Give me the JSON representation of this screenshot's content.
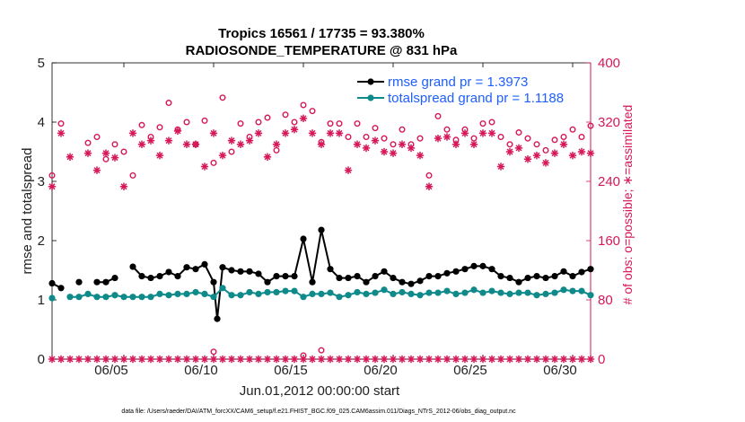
{
  "chart_data": {
    "type": "line",
    "title": "Tropics 16561 / 17735 = 93.380%",
    "subtitle": "RADIOSONDE_TEMPERATURE @ 831 hPa",
    "xlabel": "Jun.01,2012 00:00:00 start",
    "ylabel_left": "rmse and totalspread",
    "ylabel_right": "# of obs: o=possible; ∗=assimilated",
    "footer": "data file: /Users/raeder/DAI/ATM_forcXX/CAM6_setup/f.e21.FHIST_BGC.f09_025.CAM6assim.011/Diags_NTrS_2012-06/obs_diag_output.nc",
    "xlim": [
      1,
      31
    ],
    "x_ticks": [
      5,
      10,
      15,
      20,
      25,
      30
    ],
    "x_tick_labels": [
      "06/05",
      "06/10",
      "06/15",
      "06/20",
      "06/25",
      "06/30"
    ],
    "ylim_left": [
      0,
      5
    ],
    "y_ticks_left": [
      "0",
      "1",
      "2",
      "3",
      "4",
      "5"
    ],
    "ylim_right": [
      0,
      400
    ],
    "y_ticks_right": [
      "0",
      "80",
      "160",
      "240",
      "320",
      "400"
    ],
    "colors": {
      "rmse": "#000000",
      "spread": "#0f8a8a",
      "obs": "#d6175a",
      "legend_text": "#1f5fff"
    },
    "legend": [
      {
        "label": "rmse grand pr = 1.3973",
        "series": "rmse"
      },
      {
        "label": "totalspread grand pr = 1.1188",
        "series": "spread"
      }
    ],
    "series": [
      {
        "name": "rmse",
        "axis": "left",
        "points": [
          [
            1.0,
            1.28
          ],
          [
            1.5,
            1.2
          ],
          [
            2.5,
            1.3
          ],
          [
            3.5,
            1.3
          ],
          [
            4.0,
            1.3
          ],
          [
            4.5,
            1.37
          ],
          [
            5.5,
            1.56
          ],
          [
            6.0,
            1.4
          ],
          [
            6.5,
            1.37
          ],
          [
            7.0,
            1.4
          ],
          [
            7.5,
            1.47
          ],
          [
            8.0,
            1.4
          ],
          [
            8.5,
            1.55
          ],
          [
            9.0,
            1.52
          ],
          [
            9.5,
            1.6
          ],
          [
            10.0,
            1.3
          ],
          [
            10.2,
            0.68
          ],
          [
            10.5,
            1.55
          ],
          [
            11.0,
            1.5
          ],
          [
            11.5,
            1.48
          ],
          [
            12.0,
            1.48
          ],
          [
            12.5,
            1.44
          ],
          [
            13.0,
            1.3
          ],
          [
            13.5,
            1.4
          ],
          [
            14.0,
            1.4
          ],
          [
            14.5,
            1.4
          ],
          [
            15.0,
            2.03
          ],
          [
            15.5,
            1.3
          ],
          [
            16.0,
            2.18
          ],
          [
            16.5,
            1.52
          ],
          [
            17.0,
            1.37
          ],
          [
            17.5,
            1.37
          ],
          [
            18.0,
            1.4
          ],
          [
            18.5,
            1.3
          ],
          [
            19.0,
            1.4
          ],
          [
            19.5,
            1.48
          ],
          [
            20.0,
            1.37
          ],
          [
            20.5,
            1.3
          ],
          [
            21.0,
            1.27
          ],
          [
            21.5,
            1.32
          ],
          [
            22.0,
            1.4
          ],
          [
            22.5,
            1.4
          ],
          [
            23.0,
            1.45
          ],
          [
            23.5,
            1.48
          ],
          [
            24.0,
            1.52
          ],
          [
            24.5,
            1.57
          ],
          [
            25.0,
            1.57
          ],
          [
            25.5,
            1.52
          ],
          [
            26.0,
            1.4
          ],
          [
            26.5,
            1.37
          ],
          [
            27.0,
            1.3
          ],
          [
            27.5,
            1.37
          ],
          [
            28.0,
            1.4
          ],
          [
            28.5,
            1.37
          ],
          [
            29.0,
            1.4
          ],
          [
            29.5,
            1.48
          ],
          [
            30.0,
            1.4
          ],
          [
            30.5,
            1.47
          ],
          [
            31.0,
            1.52
          ]
        ]
      },
      {
        "name": "totalspread",
        "axis": "left",
        "points": [
          [
            1.0,
            1.03
          ],
          [
            2.0,
            1.05
          ],
          [
            2.5,
            1.05
          ],
          [
            3.0,
            1.1
          ],
          [
            3.5,
            1.05
          ],
          [
            4.0,
            1.05
          ],
          [
            4.5,
            1.08
          ],
          [
            5.0,
            1.05
          ],
          [
            5.5,
            1.05
          ],
          [
            6.0,
            1.05
          ],
          [
            6.5,
            1.05
          ],
          [
            7.0,
            1.1
          ],
          [
            7.5,
            1.08
          ],
          [
            8.0,
            1.1
          ],
          [
            8.5,
            1.1
          ],
          [
            9.0,
            1.13
          ],
          [
            9.5,
            1.1
          ],
          [
            10.0,
            1.05
          ],
          [
            10.5,
            1.2
          ],
          [
            11.0,
            1.08
          ],
          [
            11.5,
            1.08
          ],
          [
            12.0,
            1.13
          ],
          [
            12.5,
            1.1
          ],
          [
            13.0,
            1.13
          ],
          [
            13.5,
            1.13
          ],
          [
            14.0,
            1.15
          ],
          [
            14.5,
            1.15
          ],
          [
            15.0,
            1.05
          ],
          [
            15.5,
            1.1
          ],
          [
            16.0,
            1.1
          ],
          [
            16.5,
            1.12
          ],
          [
            17.0,
            1.05
          ],
          [
            17.5,
            1.08
          ],
          [
            18.0,
            1.13
          ],
          [
            18.5,
            1.1
          ],
          [
            19.0,
            1.12
          ],
          [
            19.5,
            1.17
          ],
          [
            20.0,
            1.1
          ],
          [
            20.5,
            1.13
          ],
          [
            21.0,
            1.1
          ],
          [
            21.5,
            1.08
          ],
          [
            22.0,
            1.12
          ],
          [
            22.5,
            1.12
          ],
          [
            23.0,
            1.15
          ],
          [
            23.5,
            1.1
          ],
          [
            24.0,
            1.12
          ],
          [
            24.5,
            1.17
          ],
          [
            25.0,
            1.12
          ],
          [
            25.5,
            1.15
          ],
          [
            26.0,
            1.12
          ],
          [
            26.5,
            1.1
          ],
          [
            27.0,
            1.12
          ],
          [
            27.5,
            1.12
          ],
          [
            28.0,
            1.08
          ],
          [
            28.5,
            1.1
          ],
          [
            29.0,
            1.12
          ],
          [
            29.5,
            1.17
          ],
          [
            30.0,
            1.15
          ],
          [
            30.5,
            1.15
          ],
          [
            31.0,
            1.08
          ]
        ]
      },
      {
        "name": "obs possible",
        "axis": "right",
        "marker": "circle",
        "points": [
          [
            1.0,
            248
          ],
          [
            1.5,
            318
          ],
          [
            3.0,
            292
          ],
          [
            3.5,
            300
          ],
          [
            4.0,
            270
          ],
          [
            4.5,
            290
          ],
          [
            5.0,
            280
          ],
          [
            5.5,
            248
          ],
          [
            6.0,
            316
          ],
          [
            6.5,
            300
          ],
          [
            7.0,
            313
          ],
          [
            7.5,
            346
          ],
          [
            8.0,
            310
          ],
          [
            8.5,
            320
          ],
          [
            9.0,
            290
          ],
          [
            9.5,
            322
          ],
          [
            10.0,
            265
          ],
          [
            10.5,
            353
          ],
          [
            11.0,
            280
          ],
          [
            11.5,
            318
          ],
          [
            12.0,
            300
          ],
          [
            12.5,
            320
          ],
          [
            13.0,
            326
          ],
          [
            13.5,
            282
          ],
          [
            14.0,
            330
          ],
          [
            14.5,
            320
          ],
          [
            15.0,
            343
          ],
          [
            15.5,
            335
          ],
          [
            16.0,
            293
          ],
          [
            16.5,
            318
          ],
          [
            17.0,
            318
          ],
          [
            17.5,
            300
          ],
          [
            18.0,
            318
          ],
          [
            18.5,
            300
          ],
          [
            19.0,
            312
          ],
          [
            19.5,
            298
          ],
          [
            20.0,
            290
          ],
          [
            20.5,
            310
          ],
          [
            21.0,
            290
          ],
          [
            21.5,
            298
          ],
          [
            22.0,
            248
          ],
          [
            22.5,
            328
          ],
          [
            23.0,
            310
          ],
          [
            23.5,
            296
          ],
          [
            24.0,
            310
          ],
          [
            24.5,
            298
          ],
          [
            25.0,
            318
          ],
          [
            25.5,
            320
          ],
          [
            26.0,
            300
          ],
          [
            26.5,
            290
          ],
          [
            27.0,
            306
          ],
          [
            27.5,
            298
          ],
          [
            28.0,
            290
          ],
          [
            28.5,
            282
          ],
          [
            29.0,
            296
          ],
          [
            29.5,
            300
          ],
          [
            30.0,
            310
          ],
          [
            30.5,
            300
          ],
          [
            31.0,
            315
          ]
        ]
      },
      {
        "name": "obs assimilated",
        "axis": "right",
        "marker": "asterisk",
        "points": [
          [
            1.0,
            233
          ],
          [
            1.5,
            305
          ],
          [
            2.0,
            273
          ],
          [
            3.0,
            278
          ],
          [
            3.5,
            255
          ],
          [
            4.0,
            278
          ],
          [
            4.5,
            272
          ],
          [
            5.0,
            233
          ],
          [
            5.5,
            305
          ],
          [
            6.0,
            290
          ],
          [
            6.5,
            295
          ],
          [
            7.0,
            275
          ],
          [
            7.5,
            295
          ],
          [
            8.0,
            308
          ],
          [
            8.5,
            290
          ],
          [
            9.0,
            290
          ],
          [
            9.5,
            260
          ],
          [
            10.0,
            305
          ],
          [
            10.5,
            275
          ],
          [
            11.0,
            295
          ],
          [
            11.5,
            290
          ],
          [
            12.0,
            295
          ],
          [
            12.5,
            305
          ],
          [
            13.0,
            273
          ],
          [
            13.5,
            290
          ],
          [
            14.0,
            305
          ],
          [
            14.5,
            310
          ],
          [
            15.0,
            325
          ],
          [
            15.5,
            305
          ],
          [
            16.0,
            290
          ],
          [
            16.5,
            305
          ],
          [
            17.0,
            305
          ],
          [
            17.5,
            255
          ],
          [
            18.0,
            290
          ],
          [
            18.5,
            285
          ],
          [
            19.0,
            295
          ],
          [
            19.5,
            280
          ],
          [
            20.0,
            278
          ],
          [
            20.5,
            290
          ],
          [
            21.0,
            285
          ],
          [
            21.5,
            275
          ],
          [
            22.0,
            233
          ],
          [
            22.5,
            298
          ],
          [
            23.0,
            300
          ],
          [
            23.5,
            290
          ],
          [
            24.0,
            305
          ],
          [
            24.5,
            290
          ],
          [
            25.0,
            305
          ],
          [
            25.5,
            305
          ],
          [
            26.0,
            260
          ],
          [
            26.5,
            280
          ],
          [
            27.0,
            285
          ],
          [
            27.5,
            270
          ],
          [
            28.0,
            275
          ],
          [
            28.5,
            265
          ],
          [
            29.0,
            278
          ],
          [
            29.5,
            290
          ],
          [
            30.0,
            275
          ],
          [
            30.5,
            280
          ],
          [
            31.0,
            278
          ]
        ]
      },
      {
        "name": "obs possible (bottom)",
        "axis": "right",
        "marker": "circle",
        "points": [
          [
            10.0,
            10
          ],
          [
            15.0,
            5
          ],
          [
            16.0,
            12
          ]
        ]
      },
      {
        "name": "obs assimilated (bottom)",
        "axis": "right",
        "marker": "asterisk",
        "x_start": 1.0,
        "x_step": 0.5,
        "count": 61,
        "value": 0
      }
    ]
  }
}
